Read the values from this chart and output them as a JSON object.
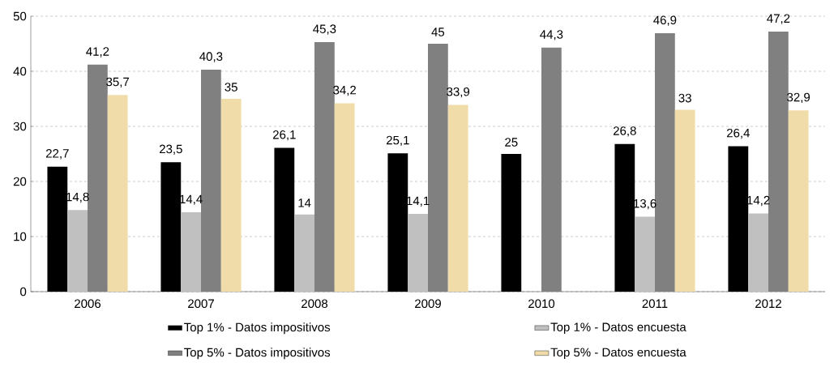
{
  "chart_data": {
    "type": "bar",
    "categories": [
      "2006",
      "2007",
      "2008",
      "2009",
      "2010",
      "2011",
      "2012"
    ],
    "series": [
      {
        "name": "Top 1% - Datos impositivos",
        "color": "#000000",
        "values": [
          22.7,
          23.5,
          26.1,
          25.1,
          25,
          26.8,
          26.4
        ],
        "value_labels": [
          "22,7",
          "23,5",
          "26,1",
          "25,1",
          "25",
          "26,8",
          "26,4"
        ]
      },
      {
        "name": "Top 1% - Datos encuesta",
        "color": "#c0c0c0",
        "values": [
          14.8,
          14.4,
          14,
          14.1,
          null,
          13.6,
          14.2
        ],
        "value_labels": [
          "14,8",
          "14,4",
          "14",
          "14,1",
          null,
          "13,6",
          "14,2"
        ]
      },
      {
        "name": "Top 5% - Datos impositivos",
        "color": "#808080",
        "values": [
          41.2,
          40.3,
          45.3,
          45,
          44.3,
          46.9,
          47.2
        ],
        "value_labels": [
          "41,2",
          "40,3",
          "45,3",
          "45",
          "44,3",
          "46,9",
          "47,2"
        ]
      },
      {
        "name": "Top 5% - Datos encuesta",
        "color": "#f0dca8",
        "values": [
          35.7,
          35,
          34.2,
          33.9,
          null,
          33,
          32.9
        ],
        "value_labels": [
          "35,7",
          "35",
          "34,2",
          "33,9",
          null,
          "33",
          "32,9"
        ]
      }
    ],
    "ylim": [
      0,
      50
    ],
    "yticks": [
      0,
      10,
      20,
      30,
      40,
      50
    ],
    "grid": "y",
    "legend": "bottom"
  }
}
